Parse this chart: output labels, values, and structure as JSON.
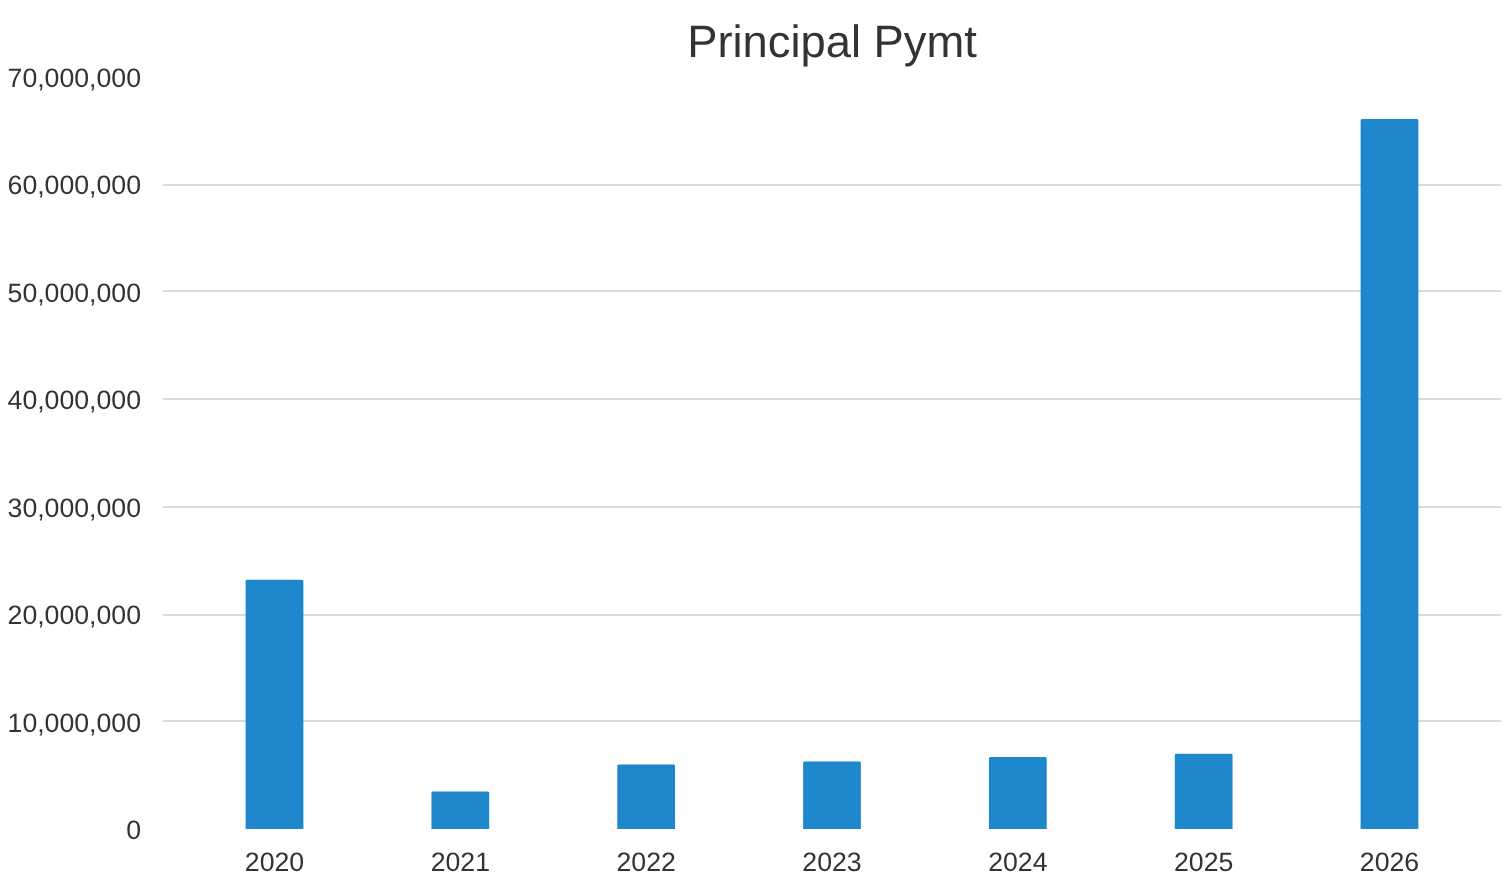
{
  "chart_data": {
    "type": "bar",
    "title": "Principal Pymt",
    "categories": [
      "2020",
      "2021",
      "2022",
      "2023",
      "2024",
      "2025",
      "2026"
    ],
    "values": [
      23100000,
      3400000,
      5900000,
      6200000,
      6600000,
      6900000,
      66000000
    ],
    "color": "#1f87cc",
    "ylim": [
      0,
      70000000
    ],
    "yticks": [
      {
        "value": 0,
        "label": "0"
      },
      {
        "value": 10000000,
        "label": "10,000,000"
      },
      {
        "value": 20000000,
        "label": "20,000,000"
      },
      {
        "value": 30000000,
        "label": "30,000,000"
      },
      {
        "value": 40000000,
        "label": "40,000,000"
      },
      {
        "value": 50000000,
        "label": "50,000,000"
      },
      {
        "value": 60000000,
        "label": "60,000,000"
      },
      {
        "value": 70000000,
        "label": "70,000,000"
      }
    ],
    "grid": "y"
  }
}
